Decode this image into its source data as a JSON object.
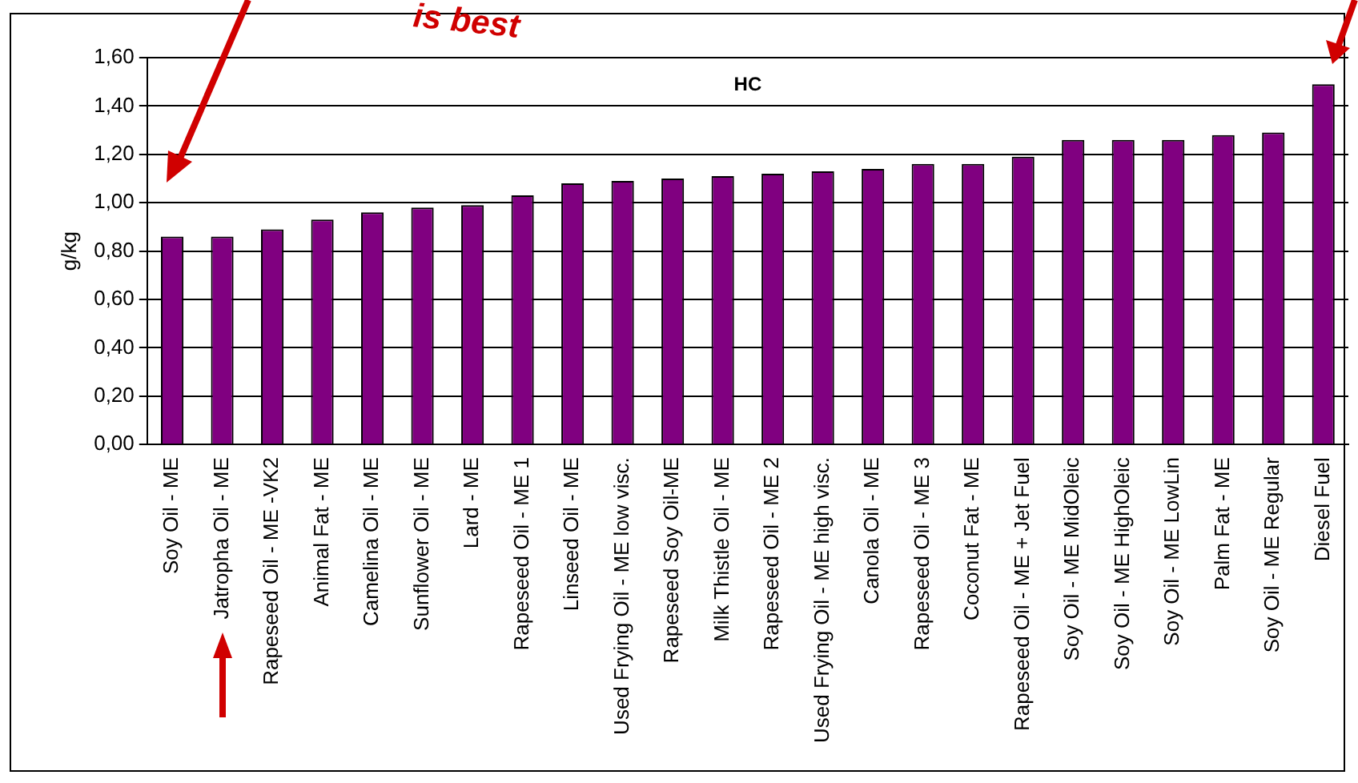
{
  "chart_data": {
    "type": "bar",
    "title": "HC",
    "ylabel": "g/kg",
    "categories": [
      "Soy Oil - ME",
      "Jatropha Oil - ME",
      "Rapeseed Oil - ME -VK2",
      "Animal Fat - ME",
      "Camelina Oil - ME",
      "Sunflower Oil - ME",
      "Lard - ME",
      "Rapeseed Oil - ME 1",
      "Linseed Oil - ME",
      "Used Frying Oil - ME low visc.",
      "Rapeseed Soy Oil-ME",
      "Milk Thistle Oil - ME",
      "Rapeseed Oil - ME 2",
      "Used Frying Oil - ME high visc.",
      "Canola Oil - ME",
      "Rapeseed Oil - ME 3",
      "Coconut Fat - ME",
      "Rapeseed Oil - ME + Jet Fuel",
      "Soy Oil - ME MidOleic",
      "Soy Oil - ME HighOleic",
      "Soy Oil - ME LowLin",
      "Palm Fat - ME",
      "Soy Oil - ME Regular",
      "Diesel Fuel"
    ],
    "values": [
      0.86,
      0.86,
      0.89,
      0.93,
      0.96,
      0.98,
      0.99,
      1.03,
      1.08,
      1.09,
      1.1,
      1.11,
      1.12,
      1.13,
      1.14,
      1.16,
      1.16,
      1.19,
      1.26,
      1.26,
      1.26,
      1.28,
      1.29,
      1.49
    ],
    "color": "#800080",
    "ylim": [
      0,
      1.6
    ],
    "yticks": [
      {
        "value": 0,
        "label": "0,00"
      },
      {
        "value": 0.2,
        "label": "0,20"
      },
      {
        "value": 0.4,
        "label": "0,40"
      },
      {
        "value": 0.6,
        "label": "0,60"
      },
      {
        "value": 0.8,
        "label": "0,80"
      },
      {
        "value": 1.0,
        "label": "1,00"
      },
      {
        "value": 1.2,
        "label": "1,20"
      },
      {
        "value": 1.4,
        "label": "1,40"
      },
      {
        "value": 1.6,
        "label": "1,60"
      }
    ],
    "grid": "y",
    "annotations": [
      "is best"
    ]
  }
}
